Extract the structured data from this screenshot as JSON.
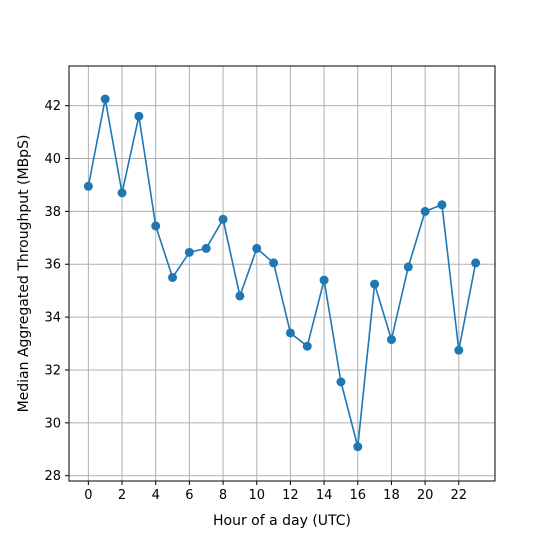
{
  "chart_data": {
    "type": "line",
    "title": "",
    "xlabel": "Hour of a day (UTC)",
    "ylabel": "Median Aggregated Throughput (MBpS)",
    "x": [
      0,
      1,
      2,
      3,
      4,
      5,
      6,
      7,
      8,
      9,
      10,
      11,
      12,
      13,
      14,
      15,
      16,
      17,
      18,
      19,
      20,
      21,
      22,
      23
    ],
    "series": [
      {
        "values": [
          38.95,
          42.25,
          38.7,
          41.6,
          37.45,
          35.5,
          36.45,
          36.6,
          37.7,
          34.8,
          36.6,
          36.05,
          33.4,
          32.9,
          35.4,
          31.55,
          29.1,
          35.25,
          33.15,
          35.9,
          38.0,
          38.25,
          32.75,
          36.05
        ],
        "color": "#1f77b4",
        "marker": "circle"
      }
    ],
    "xlim": [
      -1.15,
      24.15
    ],
    "ylim": [
      27.8,
      43.5
    ],
    "xticks": [
      0,
      2,
      4,
      6,
      8,
      10,
      12,
      14,
      16,
      18,
      20,
      22
    ],
    "yticks": [
      28,
      30,
      32,
      34,
      36,
      38,
      40,
      42
    ],
    "grid": true,
    "legend": "none"
  }
}
